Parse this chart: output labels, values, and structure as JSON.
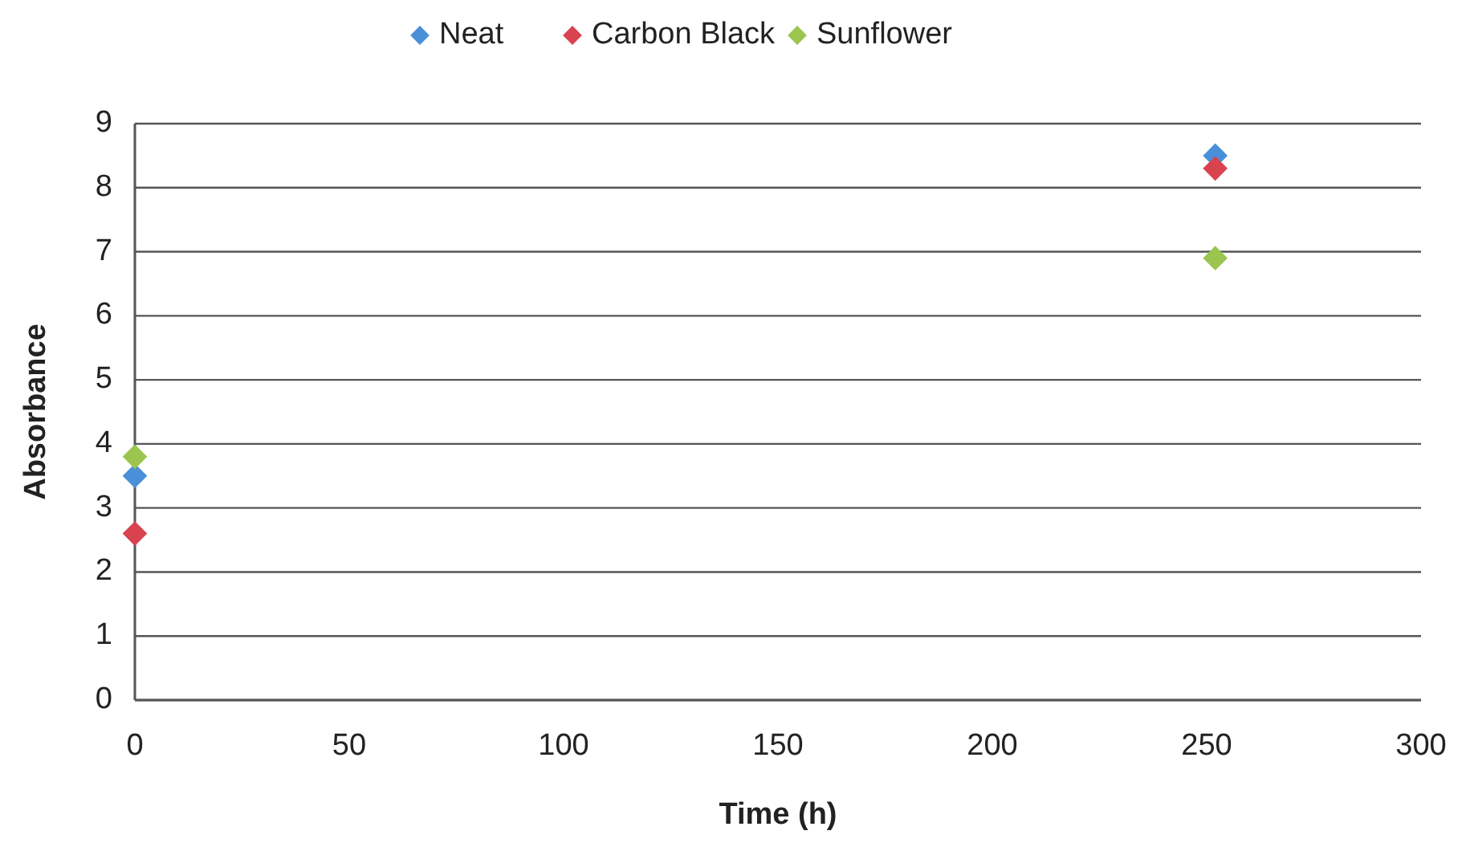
{
  "chart_data": {
    "type": "scatter",
    "xlabel": "Time (h)",
    "ylabel": "Absorbance",
    "xlim": [
      0,
      300
    ],
    "xticks": [
      0,
      50,
      100,
      150,
      200,
      250,
      300
    ],
    "ylim": [
      0,
      9
    ],
    "yticks": [
      0,
      1,
      2,
      3,
      4,
      5,
      6,
      7,
      8,
      9
    ],
    "grid": "y",
    "legend": "top",
    "marker": "diamond",
    "x": [
      0,
      252
    ],
    "series": [
      {
        "name": "Neat",
        "color": "#4a90d9",
        "values": [
          3.5,
          8.5
        ]
      },
      {
        "name": "Carbon Black",
        "color": "#d9434f",
        "values": [
          2.6,
          8.3
        ]
      },
      {
        "name": "Sunflower",
        "color": "#9bc54f",
        "values": [
          3.8,
          6.9
        ]
      }
    ]
  }
}
